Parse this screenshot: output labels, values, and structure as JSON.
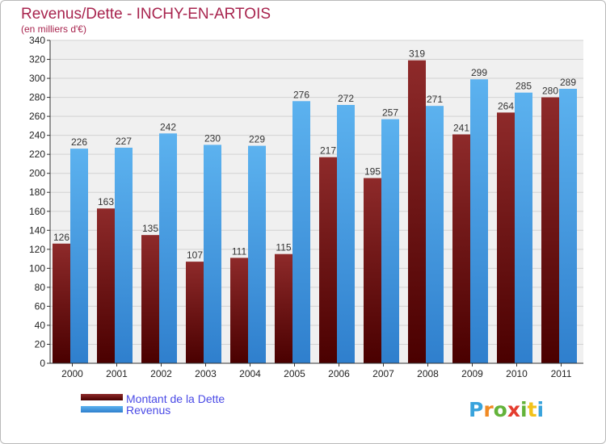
{
  "chart_data": {
    "type": "bar",
    "title": "Revenus/Dette - INCHY-EN-ARTOIS",
    "subtitle": "(en milliers d'€)",
    "categories": [
      "2000",
      "2001",
      "2002",
      "2003",
      "2004",
      "2005",
      "2006",
      "2007",
      "2008",
      "2009",
      "2010",
      "2011"
    ],
    "series": [
      {
        "name": "Montant de la Dette",
        "color": "#7a1515",
        "values": [
          126,
          163,
          135,
          107,
          111,
          115,
          217,
          195,
          319,
          241,
          264,
          280
        ]
      },
      {
        "name": "Revenus",
        "color": "#4ea6e8",
        "values": [
          226,
          227,
          242,
          230,
          229,
          276,
          272,
          257,
          271,
          299,
          285,
          289
        ]
      }
    ],
    "ylim": [
      0,
      340
    ],
    "ytick_step": 20,
    "grid": true,
    "legend": "bottom-left",
    "xlabel": "",
    "ylabel": ""
  },
  "branding": {
    "logo_letters": [
      "P",
      "r",
      "o",
      "x",
      "i",
      "t",
      "i"
    ],
    "logo_colors": [
      "#39a3dc",
      "#f08a24",
      "#63b33a",
      "#e43d2f",
      "#63b33a",
      "#f2c21a",
      "#39a3dc"
    ]
  }
}
